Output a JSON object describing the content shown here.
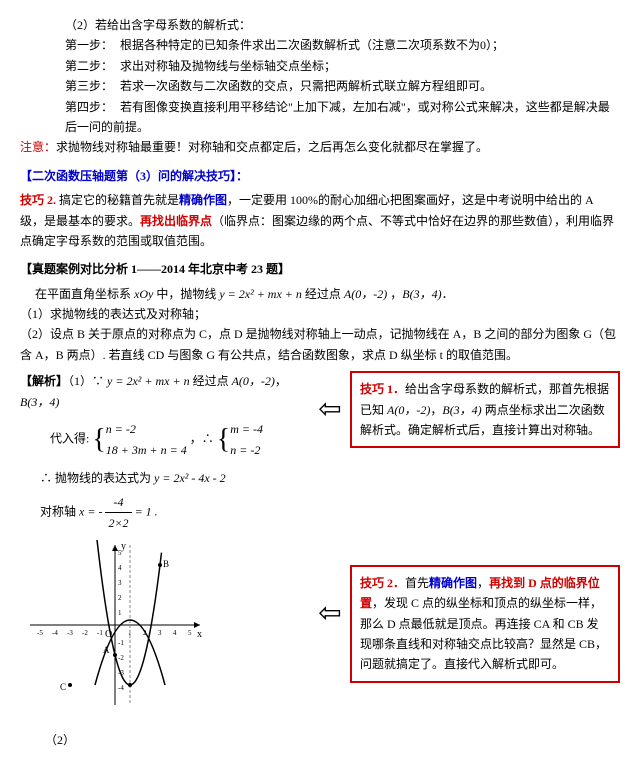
{
  "part2": {
    "title": "（2）若给出含字母系数的解析式：",
    "steps": [
      {
        "label": "第一步：",
        "text": "根据各种特定的已知条件求出二次函数解析式（注意二次项系数不为0）；"
      },
      {
        "label": "第二步：",
        "text": "求出对称轴及抛物线与坐标轴交点坐标；"
      },
      {
        "label": "第三步：",
        "text": "若求一次函数与二次函数的交点，只需把两解析式联立解方程组即可。"
      },
      {
        "label": "第四步：",
        "text": "若有图像变换直接利用平移结论\"上加下减，左加右减\"，或对称公式来解决，这些都是解决最后一问的前提。"
      }
    ],
    "note_label": "注意：",
    "note_text": "求抛物线对称轴最重要！对称轴和交点都定后，之后再怎么变化就都尽在掌握了。"
  },
  "skill3": {
    "title": "【二次函数压轴题第（3）问的解决技巧】："
  },
  "tip2": {
    "label": "技巧 2. ",
    "t1": "搞定它的秘籍首先就是",
    "t2": "精确作图",
    "t3": "，一定要用 100%的耐心加细心把图案画好，这是中考说明中给出的 A 级，是最基本的要求。",
    "t4": "再找出临界点",
    "t5": "（临界点：图案边缘的两个点、不等式中恰好在边界的那些数值），利用临界点确定字母系数的范围或取值范围。"
  },
  "case": {
    "title": "【真题案例对比分析 1——2014 年北京中考 23 题】",
    "p1a": "在平面直角坐标系 ",
    "p1_xoy": "xOy",
    "p1b": " 中，抛物线 ",
    "p1_eq": "y = 2x² + mx + n",
    "p1c": " 经过点 ",
    "p1_A": "A(0，-2)",
    "p1d": " ，",
    "p1_B": "B(3，4)",
    "p1e": "．",
    "q1": "（1）求抛物线的表达式及对称轴；",
    "q2": "（2）设点 B 关于原点的对称点为 C，点 D 是抛物线对称轴上一动点，记抛物线在 A，B 之间的部分为图象 G（包含 A，B 两点）. 若直线 CD 与图象 G 有公共点，结合函数图象，求点 D 纵坐标 t 的取值范围。"
  },
  "sol": {
    "label": "【解析】",
    "l1a": "（1）∵ ",
    "l1_eq": "y = 2x² + mx + n",
    "l1b": " 经过点 ",
    "l1_A": "A(0，-2)",
    "l1c": "，",
    "l1_B": "B(3，4)",
    "sub_label": "代入得:",
    "sub_eq1a": "n = -2",
    "sub_eq1b": "18 + 3m + n = 4",
    "sub_eq2a": "m = -4",
    "sub_eq2b": "n = -2",
    "result_a": "∴ 抛物线的表达式为 ",
    "result_eq": "y = 2x² - 4x - 2",
    "axis_a": "对称轴 ",
    "axis_x": "x = ",
    "axis_frac_n": "-4",
    "axis_frac_d": "2×2",
    "axis_neg": " - ",
    "axis_end": " = 1 .",
    "part2_label": "（2）"
  },
  "box1": {
    "t0": "技巧 1．",
    "t1": "给出含字母系数的解析式，那首先根据已知 ",
    "tA": "A(0，-2)",
    "tc": "，",
    "tB": "B(3，4)",
    "t2": " 两点坐标求出二次函数解析式。确定解析式后，直接计算出对称轴。"
  },
  "box2": {
    "t0": "技巧 2．",
    "t1": "首先",
    "t2": "精确作图",
    "t3": "，",
    "t4": "再找到 D 点的临界位置",
    "t5": "，发现 C 点的纵坐标和顶点的纵坐标一样，那么 D 点最低就是顶点。再连接 CA 和 CB 发现哪条直线和对称轴交点比较高？显然是 CB，问题就搞定了。直接代入解析式即可。"
  },
  "graph": {
    "x_range": [
      -5,
      5
    ],
    "y_range": [
      -6,
      6
    ],
    "x_ticks": [
      -5,
      -4,
      -3,
      -2,
      -1,
      1,
      2,
      3,
      4,
      5
    ],
    "y_ticks": [
      -5,
      -4,
      -3,
      -2,
      -1,
      1,
      2,
      3,
      4,
      5
    ],
    "axis_color": "#000",
    "curve_color": "#000",
    "dash_color": "#888",
    "vertex": [
      1,
      -4
    ],
    "sym_x": 1,
    "points": {
      "A": [
        0,
        -2
      ],
      "B": [
        3,
        4
      ],
      "C": [
        -3,
        -4
      ]
    },
    "labels": {
      "x": "x",
      "y": "y",
      "O": "O"
    }
  }
}
